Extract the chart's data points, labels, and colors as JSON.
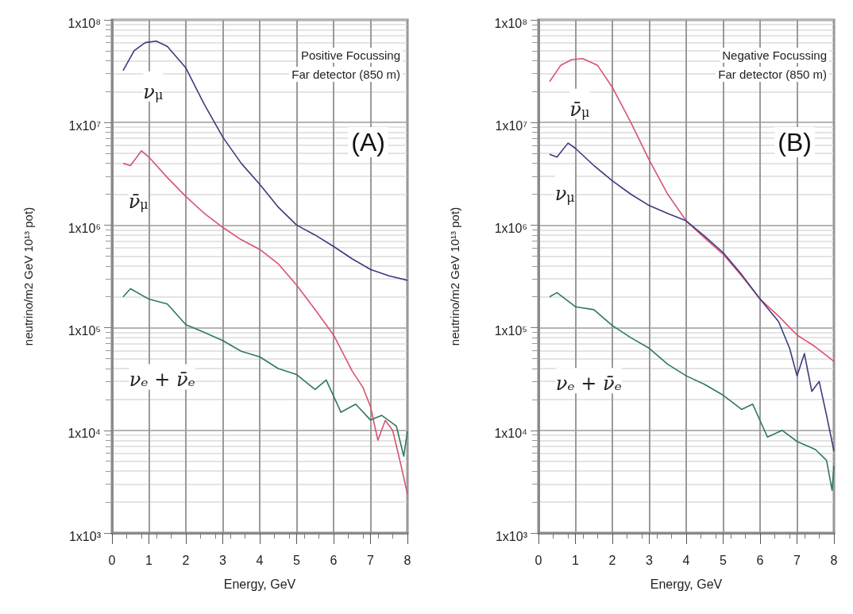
{
  "chart_data": [
    {
      "type": "line",
      "xlabel": "Energy, GeV",
      "ylabel": "neutrino/m2 GeV 10¹³ pot)",
      "annotations": [
        "Positive Focussing",
        "Far detector (850 m)",
        "(A)"
      ],
      "log": "y",
      "grid": true,
      "xlim": [
        0,
        8
      ],
      "xticks": [
        0,
        1,
        2,
        3,
        4,
        5,
        6,
        7,
        8
      ],
      "ylim": [
        1000,
        100000000
      ],
      "yticks": [
        {
          "value": 1000,
          "label": "1x10³"
        },
        {
          "value": 10000,
          "label": "1x10⁴"
        },
        {
          "value": 100000,
          "label": "1x10⁵"
        },
        {
          "value": 1000000,
          "label": "1x10⁶"
        },
        {
          "value": 10000000,
          "label": "1x10⁷"
        },
        {
          "value": 100000000,
          "label": "1x10⁸"
        }
      ],
      "series": [
        {
          "name": "ν$_{μ}$",
          "color": "#3b3b80",
          "x": [
            0.3,
            0.6,
            0.9,
            1.2,
            1.5,
            2,
            2.5,
            3,
            3.5,
            4,
            4.5,
            5,
            5.5,
            6,
            6.5,
            7,
            7.5,
            8
          ],
          "values": [
            32000000,
            50000000,
            60000000,
            62000000,
            55000000,
            34000000,
            15000000,
            7200000,
            4000000,
            2500000,
            1500000,
            1000000,
            800000,
            620000,
            470000,
            370000,
            320000,
            290000
          ]
        },
        {
          "name": "ν̄$_{μ}$",
          "color": "#d9536f",
          "x": [
            0.3,
            0.5,
            0.8,
            1,
            1.5,
            2,
            2.5,
            3,
            3.5,
            4,
            4.5,
            5,
            5.5,
            6,
            6.5,
            6.8,
            7,
            7.2,
            7.4,
            7.6,
            7.8,
            8
          ],
          "values": [
            4000000,
            3800000,
            5300000,
            4600000,
            2900000,
            1900000,
            1300000,
            950000,
            720000,
            580000,
            420000,
            260000,
            150000,
            85000,
            38000,
            26000,
            17000,
            8000,
            12500,
            10000,
            5000,
            2400
          ]
        },
        {
          "name": "νₑ + ν̄ₑ",
          "color": "#2e7a5a",
          "x": [
            0.3,
            0.5,
            1,
            1.5,
            2,
            2.5,
            3,
            3.5,
            4,
            4.5,
            5,
            5.5,
            5.8,
            6.2,
            6.6,
            7,
            7.3,
            7.7,
            7.9,
            8
          ],
          "values": [
            200000,
            240000,
            190000,
            170000,
            107000,
            90000,
            75000,
            59000,
            52000,
            40000,
            35000,
            25000,
            31000,
            15000,
            18000,
            12600,
            14000,
            11000,
            5600,
            9800
          ]
        }
      ]
    },
    {
      "type": "line",
      "xlabel": "Energy, GeV",
      "ylabel": "neutrino/m2 GeV 10¹³ pot)",
      "annotations": [
        "Negative Focussing",
        "Far detector (850 m)",
        "(B)"
      ],
      "log": "y",
      "grid": true,
      "xlim": [
        0,
        8
      ],
      "xticks": [
        0,
        1,
        2,
        3,
        4,
        5,
        6,
        7,
        8
      ],
      "ylim": [
        1000,
        100000000
      ],
      "yticks": [
        {
          "value": 1000,
          "label": "1x10³"
        },
        {
          "value": 10000,
          "label": "1x10⁴"
        },
        {
          "value": 100000,
          "label": "1x10⁵"
        },
        {
          "value": 1000000,
          "label": "1x10⁶"
        },
        {
          "value": 10000000,
          "label": "1x10⁷"
        },
        {
          "value": 100000000,
          "label": "1x10⁸"
        }
      ],
      "series": [
        {
          "name": "ν̄$_{μ}$",
          "color": "#d9536f",
          "x": [
            0.3,
            0.6,
            0.9,
            1.2,
            1.6,
            2,
            2.5,
            3,
            3.5,
            4,
            4.5,
            5,
            5.5,
            6,
            6.5,
            7,
            7.5,
            8
          ],
          "values": [
            25000000,
            36000000,
            41000000,
            42000000,
            36000000,
            22000000,
            10000000,
            4300000,
            2000000,
            1100000,
            750000,
            520000,
            320000,
            190000,
            130000,
            85000,
            65000,
            47000
          ]
        },
        {
          "name": "ν$_{μ}$",
          "color": "#3b3b80",
          "x": [
            0.3,
            0.5,
            0.8,
            1,
            1.5,
            2,
            2.5,
            3,
            3.5,
            4,
            4.5,
            5,
            5.5,
            6,
            6.5,
            6.8,
            7,
            7.2,
            7.4,
            7.6,
            7.8,
            8
          ],
          "values": [
            4900000,
            4600000,
            6300000,
            5600000,
            3800000,
            2700000,
            2000000,
            1550000,
            1300000,
            1100000,
            780000,
            540000,
            330000,
            190000,
            115000,
            63000,
            34000,
            56000,
            24000,
            30000,
            14000,
            6300
          ]
        },
        {
          "name": "νₑ + ν̄ₑ",
          "color": "#2e7a5a",
          "x": [
            0.3,
            0.5,
            1,
            1.5,
            2,
            2.5,
            3,
            3.5,
            4,
            4.5,
            5,
            5.5,
            5.8,
            6.2,
            6.6,
            7,
            7.5,
            7.8,
            7.95,
            8
          ],
          "values": [
            200000,
            220000,
            160000,
            150000,
            105000,
            80000,
            63000,
            44000,
            34000,
            28000,
            22000,
            16000,
            18000,
            8600,
            10000,
            7800,
            6500,
            5100,
            2600,
            4500
          ]
        }
      ]
    }
  ]
}
